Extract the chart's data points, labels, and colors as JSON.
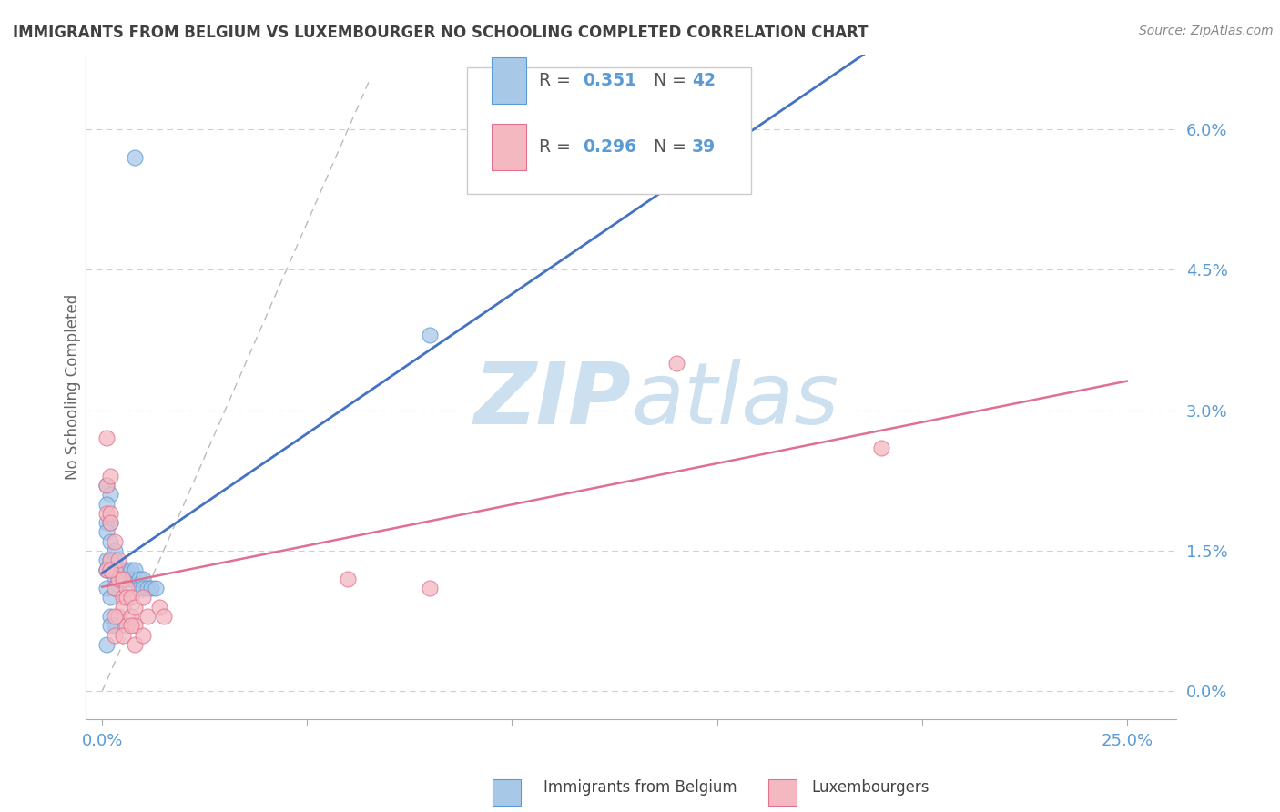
{
  "title": "IMMIGRANTS FROM BELGIUM VS LUXEMBOURGER NO SCHOOLING COMPLETED CORRELATION CHART",
  "source": "Source: ZipAtlas.com",
  "ylabel": "No Schooling Completed",
  "right_yticks": [
    0.0,
    0.015,
    0.03,
    0.045,
    0.06
  ],
  "right_yticklabels": [
    "0.0%",
    "1.5%",
    "3.0%",
    "4.5%",
    "6.0%"
  ],
  "xticks": [
    0.0,
    0.05,
    0.1,
    0.15,
    0.2,
    0.25
  ],
  "xticklabels_show": [
    "0.0%",
    "",
    "",
    "",
    "",
    "25.0%"
  ],
  "xlim": [
    -0.004,
    0.262
  ],
  "ylim": [
    -0.003,
    0.068
  ],
  "legend_r1": "0.351",
  "legend_n1": "42",
  "legend_r2": "0.296",
  "legend_n2": "39",
  "blue_color": "#a8c8e8",
  "blue_edge_color": "#5b9bd5",
  "blue_line_color": "#4472c4",
  "pink_color": "#f4b8c1",
  "pink_edge_color": "#e07090",
  "pink_line_color": "#e07090",
  "watermark_color": "#cde0f0",
  "background_color": "#ffffff",
  "grid_color": "#d0d0d0",
  "title_color": "#404040",
  "tick_label_color": "#5b9bd5",
  "legend_text_color": "#5b9bd5",
  "blue_scatter_x": [
    0.008,
    0.001,
    0.002,
    0.001,
    0.001,
    0.002,
    0.001,
    0.002,
    0.001,
    0.001,
    0.002,
    0.001,
    0.003,
    0.003,
    0.002,
    0.003,
    0.001,
    0.004,
    0.004,
    0.005,
    0.003,
    0.002,
    0.005,
    0.006,
    0.003,
    0.004,
    0.006,
    0.007,
    0.007,
    0.008,
    0.009,
    0.009,
    0.01,
    0.01,
    0.011,
    0.012,
    0.013,
    0.002,
    0.003,
    0.08,
    0.002,
    0.001
  ],
  "blue_scatter_y": [
    0.057,
    0.022,
    0.021,
    0.02,
    0.018,
    0.018,
    0.017,
    0.016,
    0.014,
    0.013,
    0.014,
    0.013,
    0.015,
    0.014,
    0.013,
    0.012,
    0.011,
    0.012,
    0.011,
    0.012,
    0.011,
    0.01,
    0.013,
    0.012,
    0.011,
    0.012,
    0.013,
    0.013,
    0.012,
    0.013,
    0.012,
    0.011,
    0.012,
    0.011,
    0.011,
    0.011,
    0.011,
    0.008,
    0.007,
    0.038,
    0.007,
    0.005
  ],
  "pink_scatter_x": [
    0.001,
    0.001,
    0.001,
    0.002,
    0.002,
    0.002,
    0.002,
    0.003,
    0.003,
    0.003,
    0.004,
    0.004,
    0.004,
    0.005,
    0.005,
    0.005,
    0.006,
    0.006,
    0.006,
    0.007,
    0.007,
    0.008,
    0.008,
    0.01,
    0.011,
    0.014,
    0.015,
    0.001,
    0.002,
    0.003,
    0.003,
    0.005,
    0.007,
    0.008,
    0.01,
    0.14,
    0.19,
    0.08,
    0.06
  ],
  "pink_scatter_y": [
    0.027,
    0.022,
    0.019,
    0.023,
    0.019,
    0.018,
    0.014,
    0.016,
    0.013,
    0.011,
    0.014,
    0.012,
    0.008,
    0.012,
    0.01,
    0.009,
    0.011,
    0.01,
    0.007,
    0.01,
    0.008,
    0.009,
    0.007,
    0.01,
    0.008,
    0.009,
    0.008,
    0.013,
    0.013,
    0.008,
    0.006,
    0.006,
    0.007,
    0.005,
    0.006,
    0.035,
    0.026,
    0.011,
    0.012
  ]
}
